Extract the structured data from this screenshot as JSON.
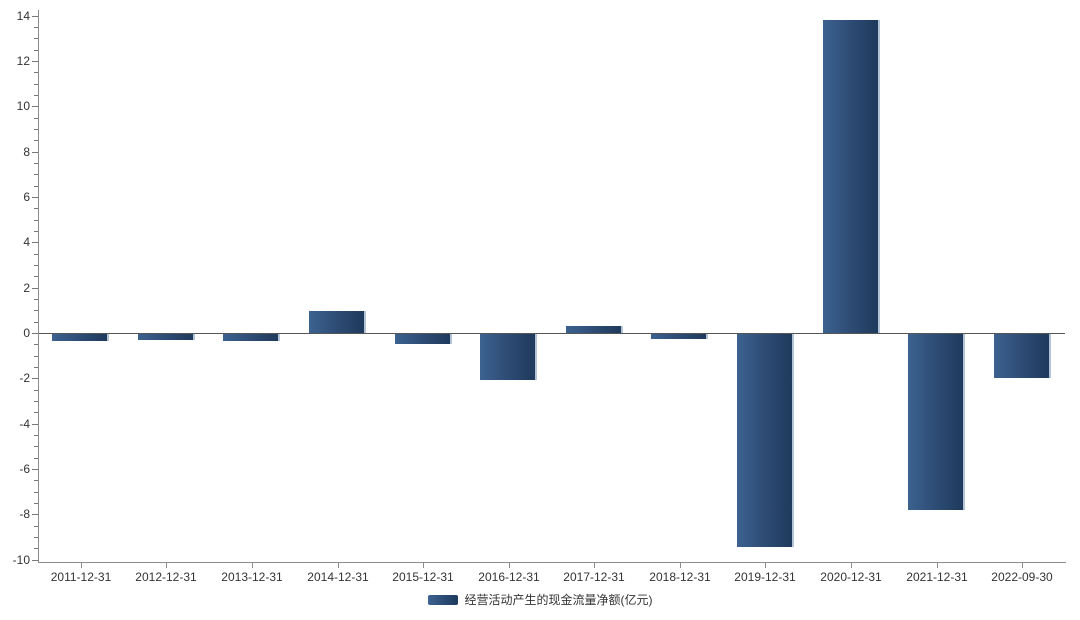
{
  "chart_data": {
    "type": "bar",
    "title": "",
    "xlabel": "",
    "ylabel": "",
    "categories": [
      "2011-12-31",
      "2012-12-31",
      "2013-12-31",
      "2014-12-31",
      "2015-12-31",
      "2016-12-31",
      "2017-12-31",
      "2018-12-31",
      "2019-12-31",
      "2020-12-31",
      "2021-12-31",
      "2022-09-30"
    ],
    "series": [
      {
        "name": "经营活动产生的现金流量净额(亿元)",
        "values": [
          -0.33,
          -0.27,
          -0.3,
          0.95,
          -0.45,
          -2.05,
          0.33,
          -0.2,
          -9.4,
          13.8,
          -7.75,
          -1.95
        ]
      }
    ],
    "ylim": [
      -10,
      14
    ],
    "y_major_tick_interval": 2,
    "y_minor_tick_interval": 0.5,
    "y_tick_labels": [
      "-10",
      "-8",
      "-6",
      "-4",
      "-2",
      "0",
      "2",
      "4",
      "6",
      "8",
      "10",
      "12",
      "14"
    ],
    "grid": false,
    "legend_position": "bottom-center",
    "colors": {
      "bar_gradient_left": "#3c6290",
      "bar_gradient_right": "#1e3a5c",
      "bar_edge_highlight": "#b3c4d6",
      "axis_line": "#8c8c8c",
      "zero_line": "#555555",
      "tick_text": "#333333"
    }
  }
}
